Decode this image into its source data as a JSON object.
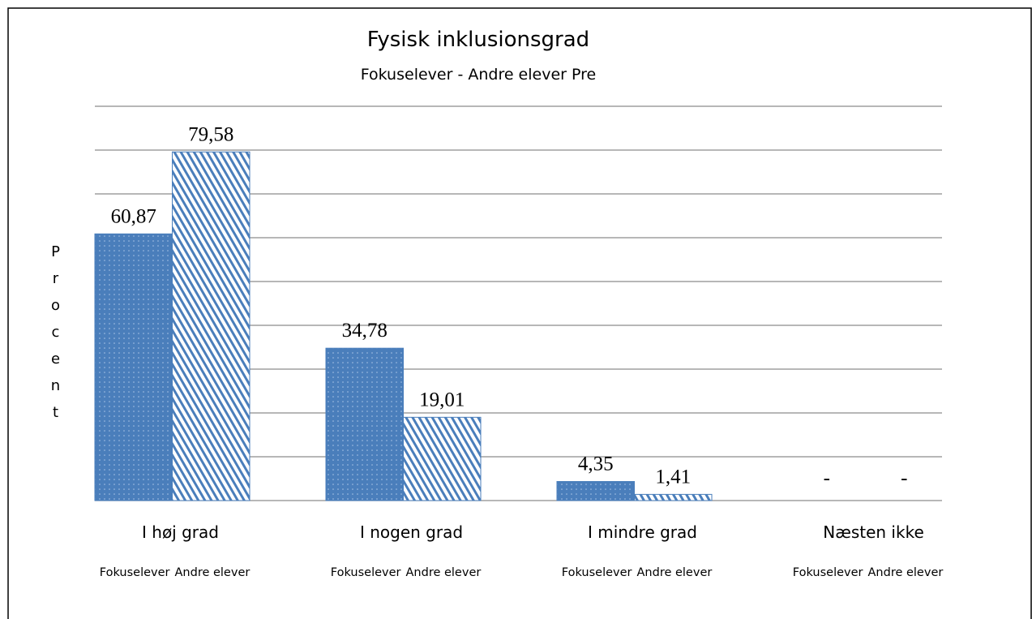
{
  "chart_data": {
    "type": "bar",
    "title": "Fysisk inklusionsgrad",
    "subtitle": "Fokuselever - Andre elever Pre",
    "ylabel": "Procent",
    "categories": [
      "I høj grad",
      "I nogen grad",
      "I mindre grad",
      "Næsten ikke"
    ],
    "series": [
      {
        "name": "Fokuselever",
        "color": "#4a7ebb",
        "values": [
          60.87,
          34.78,
          4.35,
          null
        ],
        "value_labels": [
          "60,87",
          "34,78",
          "4,35",
          "-"
        ]
      },
      {
        "name": "Andre elever",
        "color": "#4a7ebb",
        "values": [
          79.58,
          19.01,
          1.41,
          null
        ],
        "value_labels": [
          "79,58",
          "19,01",
          "1,41",
          "-"
        ]
      }
    ],
    "ylim": [
      0,
      90
    ],
    "yticks": [
      0,
      10,
      20,
      30,
      40,
      50,
      60,
      70,
      80,
      90
    ],
    "grid": true
  }
}
